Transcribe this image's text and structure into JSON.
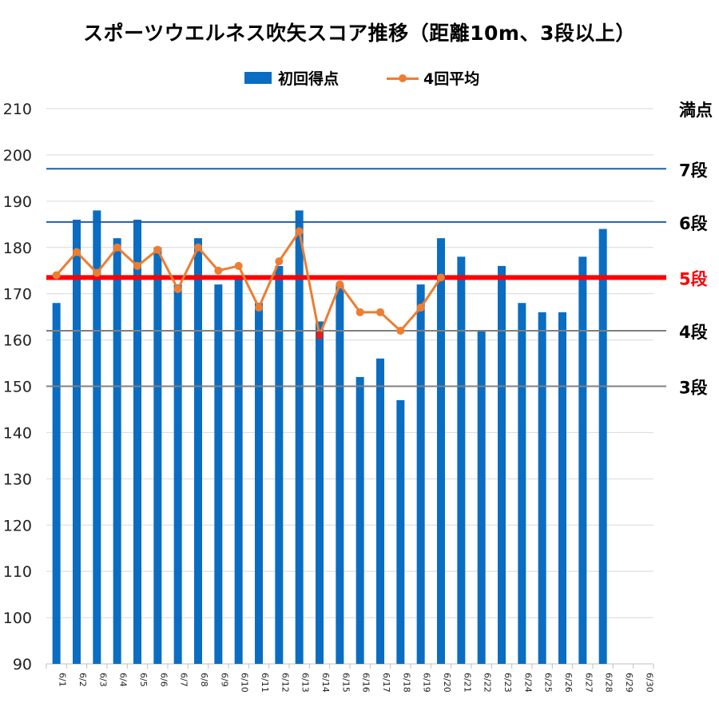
{
  "chart_data": {
    "type": "bar",
    "title": "スポーツウエルネス吹矢スコア推移（距離10m、3段以上）",
    "categories": [
      "6/1",
      "6/2",
      "6/3",
      "6/4",
      "6/5",
      "6/6",
      "6/7",
      "6/8",
      "6/9",
      "6/10",
      "6/11",
      "6/12",
      "6/13",
      "6/14",
      "6/15",
      "6/16",
      "6/17",
      "6/18",
      "6/19",
      "6/20",
      "6/21",
      "6/22",
      "6/23",
      "6/24",
      "6/25",
      "6/26",
      "6/27",
      "6/28",
      "6/29",
      "6/30"
    ],
    "ylim": [
      90,
      210
    ],
    "yticks": [
      90,
      100,
      110,
      120,
      130,
      140,
      150,
      160,
      170,
      180,
      190,
      200,
      210
    ],
    "grid": true,
    "legend": "top-center",
    "series": [
      {
        "name": "初回得点",
        "type": "bar",
        "color": "#0a6dc2",
        "values": [
          168,
          186,
          188,
          182,
          186,
          180,
          172,
          182,
          172,
          174,
          168,
          176,
          188,
          164,
          172,
          152,
          156,
          147,
          172,
          182,
          178,
          162,
          176,
          168,
          166,
          166,
          178,
          184,
          null,
          null
        ]
      },
      {
        "name": "4回平均",
        "type": "line",
        "color": "#ed7d31",
        "values": [
          174,
          179,
          174.5,
          180,
          176,
          179.5,
          171,
          180,
          175,
          176,
          167,
          177,
          183.5,
          161,
          172,
          166,
          166,
          162,
          167,
          173.5,
          null,
          null,
          null,
          null,
          null,
          null,
          null,
          null,
          null,
          null
        ],
        "highlight_point": {
          "category": "6/14",
          "color": "#e0201c"
        }
      }
    ],
    "reference_lines": [
      {
        "label": "満点",
        "value": 210,
        "color": "#000000",
        "line": false
      },
      {
        "label": "7段",
        "value": 197,
        "color": "#1f5fa8",
        "line": true
      },
      {
        "label": "6段",
        "value": 185.5,
        "color": "#1f5fa8",
        "line": true
      },
      {
        "label": "5段",
        "value": 173.5,
        "color": "#ff0000",
        "line": true,
        "bold": true
      },
      {
        "label": "4段",
        "value": 162,
        "color": "#7f7f7f",
        "line": true
      },
      {
        "label": "3段",
        "value": 150,
        "color": "#7f7f7f",
        "line": true
      }
    ]
  }
}
